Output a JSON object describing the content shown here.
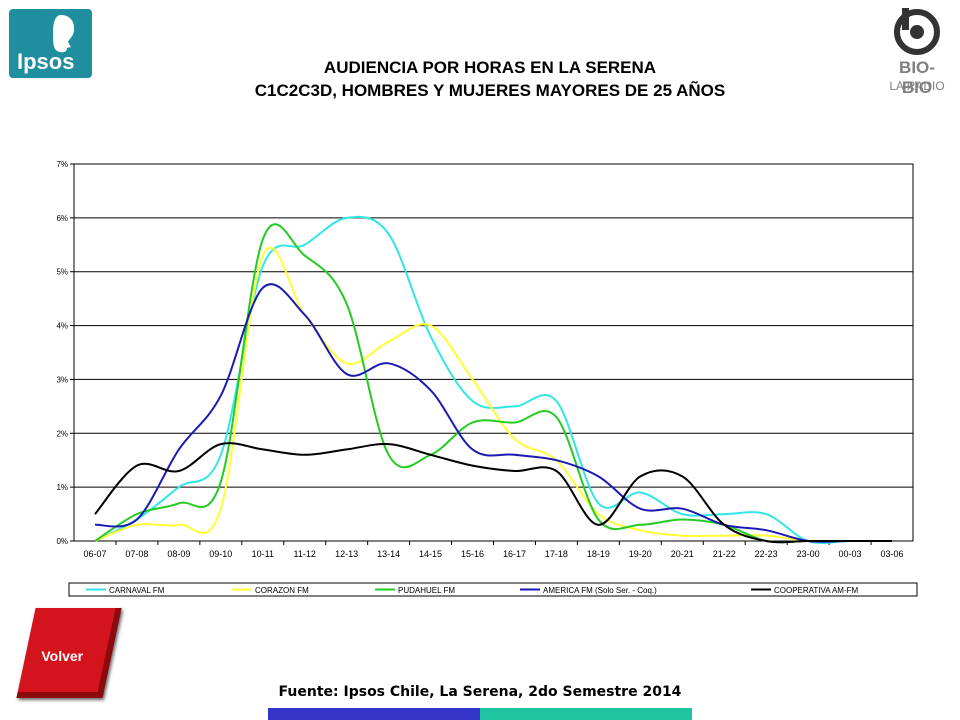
{
  "header": {
    "title_line1": "AUDIENCIA POR HORAS EN LA SERENA",
    "title_line2": "C1C2C3D, HOMBRES Y MUJERES MAYORES DE 25 AÑOS"
  },
  "logos": {
    "ipsos": "Ipsos",
    "biobio_name": "BIO-BIO",
    "biobio_sub": "LA RADIO"
  },
  "footer": {
    "volver_label": "Volver",
    "source": "Fuente: Ipsos Chile, La Serena, 2do Semestre 2014"
  },
  "chart_data": {
    "type": "line",
    "categories": [
      "06-07",
      "07-08",
      "08-09",
      "09-10",
      "10-11",
      "11-12",
      "12-13",
      "13-14",
      "14-15",
      "15-16",
      "16-17",
      "17-18",
      "18-19",
      "19-20",
      "20-21",
      "21-22",
      "22-23",
      "23-00",
      "00-03",
      "03-06"
    ],
    "y_ticks": [
      "0%",
      "1%",
      "2%",
      "3%",
      "4%",
      "5%",
      "6%",
      "7%"
    ],
    "ylim": [
      0,
      7
    ],
    "grid": true,
    "legend_position": "bottom",
    "series": [
      {
        "name": "CARNAVAL FM",
        "color": "#33e6e6",
        "values": [
          0.0,
          0.4,
          1.0,
          1.6,
          5.1,
          5.5,
          6.0,
          5.7,
          3.8,
          2.6,
          2.5,
          2.6,
          0.7,
          0.9,
          0.5,
          0.5,
          0.5,
          0.0,
          0.0,
          0.0
        ]
      },
      {
        "name": "CORAZON FM",
        "color": "#ffff33",
        "values": [
          0.0,
          0.3,
          0.3,
          0.6,
          5.3,
          4.2,
          3.3,
          3.7,
          4.0,
          3.0,
          1.9,
          1.5,
          0.5,
          0.2,
          0.1,
          0.1,
          0.1,
          0.0,
          0.0,
          0.0
        ]
      },
      {
        "name": "PUDAHUEL FM",
        "color": "#22cc22",
        "values": [
          0.0,
          0.5,
          0.7,
          1.1,
          5.6,
          5.3,
          4.4,
          1.6,
          1.6,
          2.2,
          2.2,
          2.3,
          0.4,
          0.3,
          0.4,
          0.3,
          0.0,
          0.0,
          0.0,
          0.0
        ]
      },
      {
        "name": "AMERICA FM  (Solo Ser. - Coq.)",
        "color": "#1a1ab3",
        "values": [
          0.3,
          0.4,
          1.7,
          2.7,
          4.7,
          4.2,
          3.1,
          3.3,
          2.8,
          1.7,
          1.6,
          1.5,
          1.2,
          0.6,
          0.6,
          0.3,
          0.2,
          0.0,
          0.0,
          0.0
        ]
      },
      {
        "name": "COOPERATIVA AM-FM",
        "color": "#000000",
        "values": [
          0.5,
          1.4,
          1.3,
          1.8,
          1.7,
          1.6,
          1.7,
          1.8,
          1.6,
          1.4,
          1.3,
          1.3,
          0.3,
          1.2,
          1.2,
          0.3,
          0.0,
          0.0,
          0.0,
          0.0
        ]
      }
    ]
  }
}
